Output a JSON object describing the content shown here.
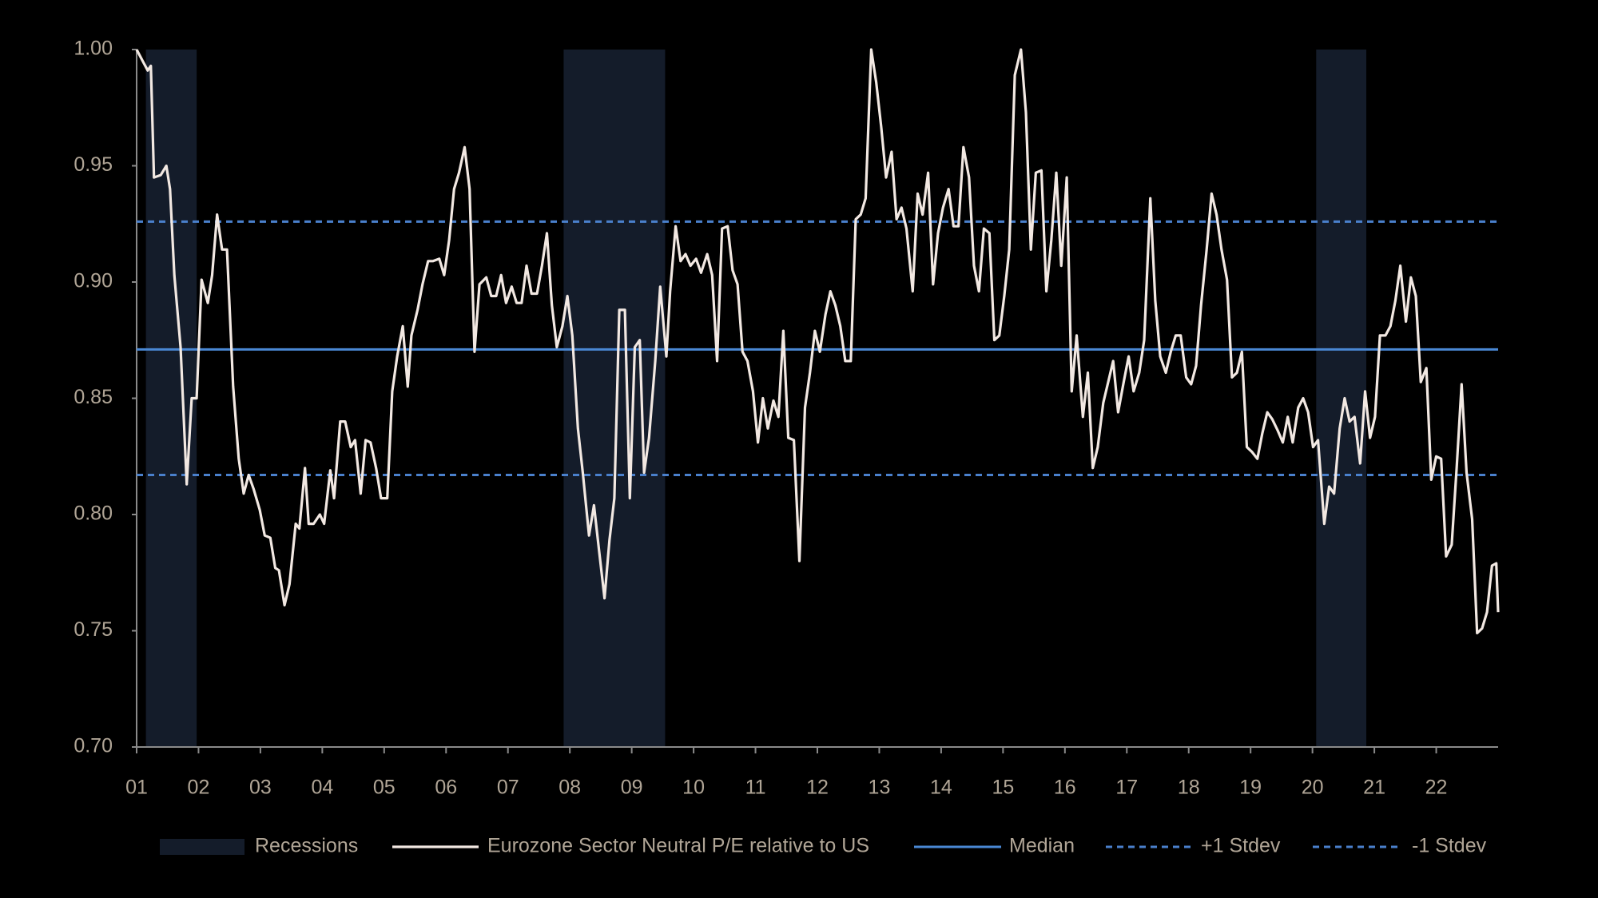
{
  "chart_data": {
    "type": "line",
    "x": [
      1.0,
      1.1,
      1.18,
      1.23,
      1.28,
      1.39,
      1.48,
      1.54,
      1.61,
      1.71,
      1.81,
      1.89,
      1.97,
      2.05,
      2.15,
      2.22,
      2.3,
      2.38,
      2.46,
      2.56,
      2.65,
      2.73,
      2.81,
      2.89,
      2.99,
      3.07,
      3.16,
      3.24,
      3.3,
      3.39,
      3.47,
      3.57,
      3.63,
      3.72,
      3.78,
      3.86,
      3.96,
      4.03,
      4.13,
      4.19,
      4.29,
      4.37,
      4.46,
      4.53,
      4.62,
      4.7,
      4.78,
      4.87,
      4.95,
      5.05,
      5.13,
      5.21,
      5.3,
      5.38,
      5.44,
      5.54,
      5.62,
      5.71,
      5.79,
      5.89,
      5.97,
      6.05,
      6.13,
      6.21,
      6.3,
      6.38,
      6.46,
      6.54,
      6.65,
      6.73,
      6.81,
      6.89,
      6.97,
      7.06,
      7.14,
      7.22,
      7.3,
      7.38,
      7.47,
      7.55,
      7.63,
      7.71,
      7.79,
      7.88,
      7.96,
      8.04,
      8.13,
      8.21,
      8.31,
      8.39,
      8.47,
      8.56,
      8.64,
      8.72,
      8.8,
      8.89,
      8.97,
      9.05,
      9.13,
      9.2,
      9.28,
      9.38,
      9.46,
      9.56,
      9.62,
      9.71,
      9.79,
      9.87,
      9.95,
      10.04,
      10.12,
      10.22,
      10.3,
      10.38,
      10.46,
      10.55,
      10.63,
      10.71,
      10.79,
      10.87,
      10.96,
      11.04,
      11.12,
      11.2,
      11.29,
      11.37,
      11.45,
      11.53,
      11.62,
      11.71,
      11.8,
      11.88,
      11.96,
      12.04,
      12.13,
      12.21,
      12.29,
      12.37,
      12.45,
      12.54,
      12.62,
      12.7,
      12.78,
      12.87,
      12.95,
      13.03,
      13.11,
      13.2,
      13.28,
      13.36,
      13.44,
      13.54,
      13.62,
      13.7,
      13.79,
      13.87,
      13.95,
      14.03,
      14.12,
      14.2,
      14.28,
      14.36,
      14.45,
      14.53,
      14.61,
      14.69,
      14.78,
      14.86,
      14.94,
      15.02,
      15.1,
      15.19,
      15.29,
      15.37,
      15.45,
      15.53,
      15.62,
      15.7,
      15.78,
      15.86,
      15.94,
      16.03,
      16.11,
      16.19,
      16.29,
      16.37,
      16.45,
      16.53,
      16.62,
      16.7,
      16.78,
      16.86,
      16.95,
      17.03,
      17.11,
      17.2,
      17.28,
      17.38,
      17.46,
      17.54,
      17.63,
      17.71,
      17.79,
      17.87,
      17.96,
      18.04,
      18.12,
      18.2,
      18.29,
      18.37,
      18.45,
      18.53,
      18.62,
      18.7,
      18.78,
      18.86,
      18.94,
      19.02,
      19.11,
      19.19,
      19.27,
      19.35,
      19.44,
      19.52,
      19.6,
      19.68,
      19.77,
      19.85,
      19.93,
      20.01,
      20.09,
      20.19,
      20.27,
      20.35,
      20.44,
      20.52,
      20.6,
      20.68,
      20.77,
      20.85,
      20.93,
      21.01,
      21.09,
      21.18,
      21.26,
      21.34,
      21.42,
      21.51,
      21.59,
      21.67,
      21.75,
      21.84,
      21.92,
      22.0,
      22.08,
      22.16,
      22.25,
      22.33,
      22.41,
      22.49,
      22.58,
      22.66,
      22.74,
      22.82,
      22.9,
      22.97,
      23.0
    ],
    "series": [
      {
        "name": "Eurozone Sector Neutral P/E relative to US",
        "color": "#f2e8e2",
        "values": [
          1.0,
          0.995,
          0.991,
          0.993,
          0.945,
          0.946,
          0.95,
          0.94,
          0.903,
          0.872,
          0.813,
          0.85,
          0.85,
          0.901,
          0.891,
          0.903,
          0.929,
          0.914,
          0.914,
          0.855,
          0.824,
          0.809,
          0.817,
          0.811,
          0.802,
          0.791,
          0.79,
          0.777,
          0.776,
          0.761,
          0.77,
          0.796,
          0.794,
          0.82,
          0.796,
          0.796,
          0.8,
          0.796,
          0.819,
          0.807,
          0.84,
          0.84,
          0.829,
          0.832,
          0.809,
          0.832,
          0.831,
          0.82,
          0.807,
          0.807,
          0.853,
          0.868,
          0.881,
          0.855,
          0.877,
          0.888,
          0.899,
          0.909,
          0.909,
          0.91,
          0.903,
          0.918,
          0.94,
          0.947,
          0.958,
          0.94,
          0.87,
          0.899,
          0.902,
          0.894,
          0.894,
          0.903,
          0.891,
          0.898,
          0.891,
          0.891,
          0.907,
          0.895,
          0.895,
          0.907,
          0.921,
          0.89,
          0.872,
          0.881,
          0.894,
          0.877,
          0.837,
          0.818,
          0.791,
          0.804,
          0.785,
          0.764,
          0.789,
          0.807,
          0.888,
          0.888,
          0.807,
          0.872,
          0.875,
          0.818,
          0.833,
          0.866,
          0.898,
          0.868,
          0.896,
          0.924,
          0.909,
          0.912,
          0.907,
          0.91,
          0.904,
          0.912,
          0.903,
          0.866,
          0.923,
          0.924,
          0.905,
          0.899,
          0.87,
          0.866,
          0.853,
          0.831,
          0.85,
          0.837,
          0.849,
          0.842,
          0.879,
          0.833,
          0.832,
          0.78,
          0.846,
          0.861,
          0.879,
          0.87,
          0.886,
          0.896,
          0.89,
          0.881,
          0.866,
          0.866,
          0.927,
          0.929,
          0.936,
          1.0,
          0.986,
          0.967,
          0.945,
          0.956,
          0.927,
          0.932,
          0.923,
          0.896,
          0.938,
          0.929,
          0.947,
          0.899,
          0.921,
          0.932,
          0.94,
          0.924,
          0.924,
          0.958,
          0.945,
          0.907,
          0.896,
          0.923,
          0.921,
          0.875,
          0.877,
          0.894,
          0.914,
          0.989,
          1.0,
          0.973,
          0.914,
          0.947,
          0.948,
          0.896,
          0.918,
          0.947,
          0.907,
          0.945,
          0.853,
          0.877,
          0.842,
          0.861,
          0.82,
          0.829,
          0.848,
          0.857,
          0.866,
          0.844,
          0.857,
          0.868,
          0.853,
          0.861,
          0.875,
          0.936,
          0.892,
          0.868,
          0.861,
          0.87,
          0.877,
          0.877,
          0.859,
          0.856,
          0.864,
          0.89,
          0.914,
          0.938,
          0.929,
          0.914,
          0.901,
          0.859,
          0.861,
          0.87,
          0.829,
          0.827,
          0.824,
          0.835,
          0.844,
          0.841,
          0.836,
          0.831,
          0.842,
          0.831,
          0.846,
          0.85,
          0.844,
          0.829,
          0.832,
          0.796,
          0.812,
          0.809,
          0.837,
          0.85,
          0.84,
          0.842,
          0.822,
          0.853,
          0.833,
          0.842,
          0.877,
          0.877,
          0.881,
          0.892,
          0.907,
          0.883,
          0.902,
          0.894,
          0.857,
          0.863,
          0.815,
          0.825,
          0.824,
          0.782,
          0.787,
          0.82,
          0.856,
          0.818,
          0.798,
          0.749,
          0.751,
          0.758,
          0.778,
          0.779,
          0.758
        ]
      }
    ],
    "shaded_regions": {
      "name": "Recessions",
      "color": "#141c2a",
      "ranges": [
        [
          1.15,
          1.97
        ],
        [
          7.9,
          9.54
        ],
        [
          20.06,
          20.87
        ]
      ]
    },
    "reference_lines": [
      {
        "name": "Median",
        "value": 0.871,
        "color": "#4a88d4",
        "style": "solid"
      },
      {
        "name": "+1 Stdev",
        "value": 0.926,
        "color": "#4a80cc",
        "style": "dashed"
      },
      {
        "name": "-1 Stdev",
        "value": 0.817,
        "color": "#4a80cc",
        "style": "dashed"
      }
    ],
    "xlim": [
      1,
      23
    ],
    "xticks": [
      {
        "value": 1,
        "label": "01"
      },
      {
        "value": 2,
        "label": "02"
      },
      {
        "value": 3,
        "label": "03"
      },
      {
        "value": 4,
        "label": "04"
      },
      {
        "value": 5,
        "label": "05"
      },
      {
        "value": 6,
        "label": "06"
      },
      {
        "value": 7,
        "label": "07"
      },
      {
        "value": 8,
        "label": "08"
      },
      {
        "value": 9,
        "label": "09"
      },
      {
        "value": 10,
        "label": "10"
      },
      {
        "value": 11,
        "label": "11"
      },
      {
        "value": 12,
        "label": "12"
      },
      {
        "value": 13,
        "label": "13"
      },
      {
        "value": 14,
        "label": "14"
      },
      {
        "value": 15,
        "label": "15"
      },
      {
        "value": 16,
        "label": "16"
      },
      {
        "value": 17,
        "label": "17"
      },
      {
        "value": 18,
        "label": "18"
      },
      {
        "value": 19,
        "label": "19"
      },
      {
        "value": 20,
        "label": "20"
      },
      {
        "value": 21,
        "label": "21"
      },
      {
        "value": 22,
        "label": "22"
      }
    ],
    "ylim": [
      0.7,
      1.0
    ],
    "yticks": [
      {
        "value": 0.7,
        "label": "0.70"
      },
      0.75,
      {
        "value": 0.8,
        "label": "0.80"
      },
      0.85,
      {
        "value": 0.9,
        "label": "0.90"
      },
      0.95,
      {
        "value": 1.0,
        "label": "1.00"
      }
    ]
  }
}
